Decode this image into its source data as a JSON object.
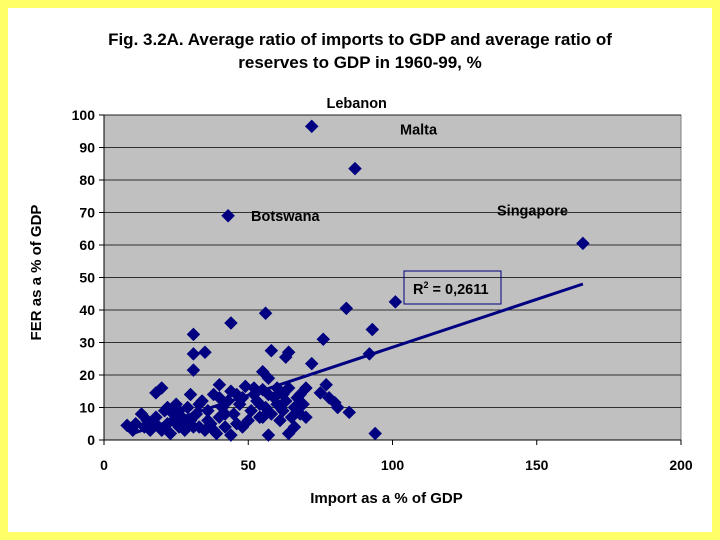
{
  "colors": {
    "border": "#ffff66",
    "plot_area": "#c0c0c0",
    "marker": "#000080",
    "trendline": "#000080",
    "r2_box_border": "#000080"
  },
  "chart_data": {
    "type": "scatter",
    "title_line1": "Fig. 3.2A. Average ratio of imports to GDP and average ratio of",
    "title_line2": "reserves to GDP in 1960-99, %",
    "xlabel": "Import as a % of GDP",
    "ylabel": "FER as a % of GDP",
    "xlim": [
      0,
      200
    ],
    "ylim": [
      0,
      100
    ],
    "xticks": [
      0,
      50,
      100,
      150,
      200
    ],
    "yticks": [
      0,
      10,
      20,
      30,
      40,
      50,
      60,
      70,
      80,
      90,
      100
    ],
    "grid": "horizontal",
    "marker": "diamond",
    "trendline": {
      "x": [
        10,
        166
      ],
      "y": [
        2,
        48
      ],
      "r2_base": "R",
      "r2_sup": "2",
      "r2_value": " = 0,2611"
    },
    "annotations": [
      {
        "label": "Lebanon",
        "x": 72,
        "y": 96.5
      },
      {
        "label": "Malta",
        "x": 87,
        "y": 83.5
      },
      {
        "label": "Botswana",
        "x": 43,
        "y": 69
      },
      {
        "label": "Singapore",
        "x": 166,
        "y": 60.5
      }
    ],
    "series": [
      {
        "name": "Countries",
        "points": [
          [
            72,
            96.5
          ],
          [
            87,
            83.5
          ],
          [
            43,
            69
          ],
          [
            166,
            60.5
          ],
          [
            101,
            42.5
          ],
          [
            84,
            40.5
          ],
          [
            56,
            39
          ],
          [
            93,
            34
          ],
          [
            44,
            36
          ],
          [
            31,
            32.5
          ],
          [
            76,
            31
          ],
          [
            58,
            27.5
          ],
          [
            35,
            27
          ],
          [
            31,
            26.5
          ],
          [
            64,
            27
          ],
          [
            92,
            26.5
          ],
          [
            63,
            25.5
          ],
          [
            72,
            23.5
          ],
          [
            31,
            21.5
          ],
          [
            55,
            21
          ],
          [
            57,
            19
          ],
          [
            40,
            17
          ],
          [
            77,
            17
          ],
          [
            49,
            16.5
          ],
          [
            20,
            16
          ],
          [
            55,
            15.5
          ],
          [
            64,
            16
          ],
          [
            70,
            16
          ],
          [
            18,
            14.5
          ],
          [
            30,
            14
          ],
          [
            44,
            15
          ],
          [
            52,
            14
          ],
          [
            75,
            14.5
          ],
          [
            78,
            13
          ],
          [
            80,
            11.5
          ],
          [
            81,
            10
          ],
          [
            85,
            8.5
          ],
          [
            94,
            2
          ],
          [
            44,
            1.5
          ],
          [
            57,
            1.5
          ],
          [
            64,
            2
          ],
          [
            8,
            4.5
          ],
          [
            10,
            3
          ],
          [
            13,
            8
          ],
          [
            15,
            6
          ],
          [
            16,
            3
          ],
          [
            18,
            7
          ],
          [
            19,
            4
          ],
          [
            21,
            9
          ],
          [
            22,
            5
          ],
          [
            23,
            2
          ],
          [
            24,
            8
          ],
          [
            25,
            11
          ],
          [
            26,
            4
          ],
          [
            27,
            7
          ],
          [
            28,
            3
          ],
          [
            29,
            10
          ],
          [
            30,
            6
          ],
          [
            32,
            8
          ],
          [
            33,
            4
          ],
          [
            34,
            12
          ],
          [
            35,
            3
          ],
          [
            36,
            9
          ],
          [
            37,
            5
          ],
          [
            38,
            14
          ],
          [
            39,
            2
          ],
          [
            40,
            7
          ],
          [
            41,
            10
          ],
          [
            42,
            4
          ],
          [
            43,
            12
          ],
          [
            45,
            8
          ],
          [
            46,
            5
          ],
          [
            47,
            11
          ],
          [
            48,
            13
          ],
          [
            50,
            6
          ],
          [
            51,
            9
          ],
          [
            53,
            12
          ],
          [
            54,
            7
          ],
          [
            56,
            10
          ],
          [
            58,
            8
          ],
          [
            59,
            13
          ],
          [
            60,
            11
          ],
          [
            61,
            6
          ],
          [
            62,
            9
          ],
          [
            63,
            12
          ],
          [
            65,
            7
          ],
          [
            66,
            10
          ],
          [
            67,
            13
          ],
          [
            68,
            8
          ],
          [
            69,
            11
          ],
          [
            70,
            7
          ],
          [
            11,
            5
          ],
          [
            14,
            4
          ],
          [
            17,
            5
          ],
          [
            20,
            3
          ],
          [
            22,
            10
          ],
          [
            24,
            6
          ],
          [
            26,
            9
          ],
          [
            28,
            5
          ],
          [
            31,
            4
          ],
          [
            33,
            11
          ],
          [
            36,
            6
          ],
          [
            38,
            3
          ],
          [
            40,
            13
          ],
          [
            42,
            8
          ],
          [
            46,
            14
          ],
          [
            48,
            4
          ],
          [
            52,
            16
          ],
          [
            54,
            11
          ],
          [
            57,
            14
          ],
          [
            60,
            16
          ],
          [
            62,
            14
          ],
          [
            55,
            7
          ],
          [
            66,
            4
          ],
          [
            68,
            14
          ]
        ]
      }
    ]
  }
}
